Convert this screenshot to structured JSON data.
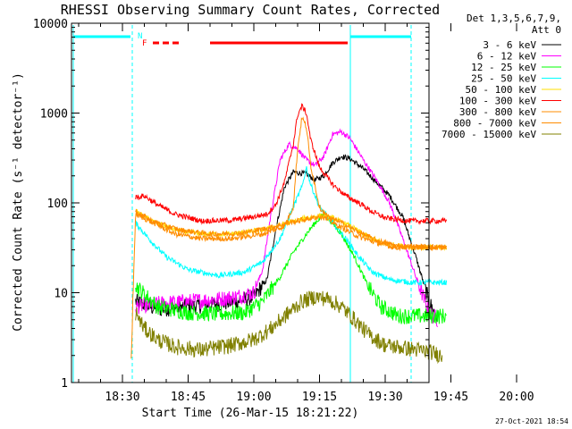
{
  "chart_data": {
    "type": "line",
    "title": "RHESSI Observing Summary Count Rates, Corrected",
    "xlabel": "Start Time (26-Mar-15 18:21:22)",
    "ylabel": "Corrected Count Rate (s⁻¹ detector⁻¹)",
    "yscale": "log",
    "ylim": [
      1,
      10000
    ],
    "xlim_minutes": [
      18.37,
      100.0
    ],
    "x_ticks": [
      {
        "m": 30,
        "label": "18:30"
      },
      {
        "m": 45,
        "label": "18:45"
      },
      {
        "m": 60,
        "label": "19:00"
      },
      {
        "m": 75,
        "label": "19:15"
      },
      {
        "m": 90,
        "label": "19:30"
      },
      {
        "m": 105,
        "label": "19:45"
      },
      {
        "m": 120,
        "label": "20:00"
      }
    ],
    "y_ticks": [
      {
        "v": 1,
        "label": "1"
      },
      {
        "v": 10,
        "label": "10"
      },
      {
        "v": 100,
        "label": "100"
      },
      {
        "v": 1000,
        "label": "1000"
      },
      {
        "v": 10000,
        "label": "10000"
      }
    ],
    "legend_header": [
      "Det 1,3,5,6,7,9,",
      "Att 0"
    ],
    "timestamp": "27-Oct-2021 18:54",
    "flags": {
      "N_label": "N",
      "F_label": "F",
      "color_day": "#00ffff",
      "color_flare": "#ff0000"
    },
    "series": [
      {
        "name": "3 - 6 keV",
        "color": "#000000",
        "points": [
          [
            33,
            8
          ],
          [
            38,
            6.5
          ],
          [
            45,
            7
          ],
          [
            52,
            7.5
          ],
          [
            56,
            8
          ],
          [
            60,
            9
          ],
          [
            63,
            14
          ],
          [
            65,
            50
          ],
          [
            67,
            150
          ],
          [
            69,
            220
          ],
          [
            72,
            210
          ],
          [
            74,
            180
          ],
          [
            76,
            200
          ],
          [
            78,
            280
          ],
          [
            80,
            330
          ],
          [
            82,
            310
          ],
          [
            85,
            240
          ],
          [
            88,
            170
          ],
          [
            91,
            120
          ],
          [
            94,
            70
          ],
          [
            97,
            25
          ],
          [
            100,
            8
          ],
          [
            102,
            5
          ]
        ]
      },
      {
        "name": "6 - 12 keV",
        "color": "#ff00ff",
        "points": [
          [
            33,
            7
          ],
          [
            38,
            7.5
          ],
          [
            45,
            8
          ],
          [
            52,
            8.5
          ],
          [
            56,
            9
          ],
          [
            60,
            10
          ],
          [
            62,
            18
          ],
          [
            64,
            80
          ],
          [
            66,
            300
          ],
          [
            68,
            450
          ],
          [
            70,
            400
          ],
          [
            72,
            300
          ],
          [
            74,
            260
          ],
          [
            76,
            330
          ],
          [
            78,
            580
          ],
          [
            80,
            620
          ],
          [
            82,
            520
          ],
          [
            85,
            300
          ],
          [
            88,
            180
          ],
          [
            91,
            100
          ],
          [
            94,
            40
          ],
          [
            97,
            15
          ],
          [
            100,
            6
          ],
          [
            102,
            5
          ]
        ]
      },
      {
        "name": "12 - 25 keV",
        "color": "#00ff00",
        "points": [
          [
            33,
            12
          ],
          [
            38,
            7
          ],
          [
            45,
            6
          ],
          [
            52,
            5.8
          ],
          [
            58,
            6
          ],
          [
            62,
            8
          ],
          [
            66,
            15
          ],
          [
            69,
            28
          ],
          [
            72,
            45
          ],
          [
            74,
            60
          ],
          [
            76,
            75
          ],
          [
            78,
            60
          ],
          [
            80,
            45
          ],
          [
            83,
            25
          ],
          [
            86,
            12
          ],
          [
            89,
            7
          ],
          [
            93,
            5.5
          ],
          [
            100,
            5.5
          ],
          [
            104,
            5.5
          ]
        ]
      },
      {
        "name": "25 - 50 keV",
        "color": "#00ffff",
        "points": [
          [
            33,
            60
          ],
          [
            36,
            40
          ],
          [
            40,
            25
          ],
          [
            45,
            18
          ],
          [
            52,
            15.5
          ],
          [
            58,
            17
          ],
          [
            62,
            22
          ],
          [
            66,
            40
          ],
          [
            69,
            90
          ],
          [
            71,
            150
          ],
          [
            72,
            250
          ],
          [
            73,
            160
          ],
          [
            75,
            90
          ],
          [
            78,
            60
          ],
          [
            81,
            40
          ],
          [
            84,
            25
          ],
          [
            87,
            17
          ],
          [
            91,
            14
          ],
          [
            96,
            13
          ],
          [
            104,
            13
          ]
        ]
      },
      {
        "name": "50 - 100 keV",
        "color": "#ffdf00",
        "points": [
          [
            33,
            80
          ],
          [
            37,
            62
          ],
          [
            42,
            50
          ],
          [
            48,
            45
          ],
          [
            55,
            45
          ],
          [
            62,
            50
          ],
          [
            68,
            60
          ],
          [
            72,
            68
          ],
          [
            75,
            72
          ],
          [
            78,
            68
          ],
          [
            82,
            55
          ],
          [
            86,
            42
          ],
          [
            90,
            35
          ],
          [
            96,
            32
          ],
          [
            104,
            32
          ]
        ]
      },
      {
        "name": "100 - 300 keV",
        "color": "#ff0000",
        "points": [
          [
            33,
            115
          ],
          [
            35,
            120
          ],
          [
            38,
            95
          ],
          [
            42,
            75
          ],
          [
            48,
            63
          ],
          [
            55,
            64
          ],
          [
            60,
            70
          ],
          [
            63,
            75
          ],
          [
            65,
            95
          ],
          [
            67,
            170
          ],
          [
            69,
            450
          ],
          [
            70,
            950
          ],
          [
            71,
            1200
          ],
          [
            72,
            1000
          ],
          [
            73,
            500
          ],
          [
            75,
            250
          ],
          [
            78,
            160
          ],
          [
            81,
            120
          ],
          [
            84,
            100
          ],
          [
            87,
            80
          ],
          [
            90,
            68
          ],
          [
            95,
            63
          ],
          [
            104,
            63
          ]
        ]
      },
      {
        "name": "300 - 800 keV",
        "color": "#ff8c00",
        "points": [
          [
            32,
            2
          ],
          [
            33,
            75
          ],
          [
            37,
            60
          ],
          [
            42,
            45
          ],
          [
            48,
            40
          ],
          [
            55,
            40
          ],
          [
            62,
            45
          ],
          [
            67,
            55
          ],
          [
            69,
            90
          ],
          [
            70,
            400
          ],
          [
            71,
            900
          ],
          [
            72,
            700
          ],
          [
            73,
            260
          ],
          [
            75,
            90
          ],
          [
            78,
            60
          ],
          [
            81,
            50
          ],
          [
            84,
            42
          ],
          [
            88,
            36
          ],
          [
            92,
            32
          ],
          [
            104,
            32
          ]
        ]
      },
      {
        "name": "800 - 7000 keV",
        "color": "#ff8c00",
        "points": [
          [
            33,
            80
          ],
          [
            37,
            62
          ],
          [
            43,
            50
          ],
          [
            50,
            45
          ],
          [
            57,
            46
          ],
          [
            63,
            52
          ],
          [
            68,
            60
          ],
          [
            72,
            66
          ],
          [
            75,
            70
          ],
          [
            79,
            64
          ],
          [
            83,
            50
          ],
          [
            88,
            38
          ],
          [
            93,
            33
          ],
          [
            104,
            32
          ]
        ]
      },
      {
        "name": "7000 - 15000 keV",
        "color": "#808000",
        "points": [
          [
            33,
            6
          ],
          [
            35,
            4
          ],
          [
            38,
            3
          ],
          [
            42,
            2.5
          ],
          [
            48,
            2.3
          ],
          [
            55,
            2.6
          ],
          [
            60,
            3
          ],
          [
            64,
            4
          ],
          [
            68,
            6
          ],
          [
            71,
            8
          ],
          [
            74,
            9
          ],
          [
            77,
            8.5
          ],
          [
            80,
            7
          ],
          [
            83,
            5
          ],
          [
            86,
            3.5
          ],
          [
            90,
            2.6
          ],
          [
            95,
            2.4
          ],
          [
            100,
            2.2
          ],
          [
            103,
            2
          ]
        ]
      }
    ]
  }
}
